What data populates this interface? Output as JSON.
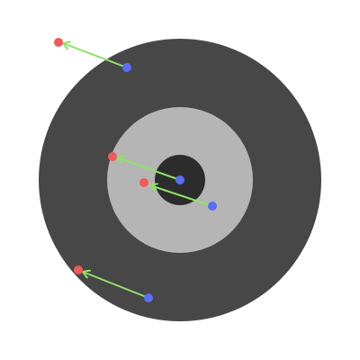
{
  "colors": {
    "background": "#ffffff",
    "outer_disk": "#474747",
    "middle_ring": "#b5b5b5",
    "inner_hole": "#2c2c2c",
    "vector": "#8fe06a",
    "source_point": "#5a6ef0",
    "target_point": "#f05a5a"
  },
  "icons": {
    "source_point": "blue-dot-icon",
    "target_point": "red-dot-icon",
    "vector": "arrow-icon"
  }
}
